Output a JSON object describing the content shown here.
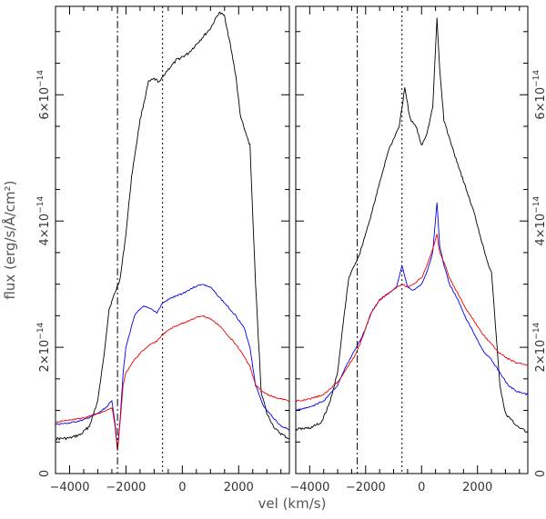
{
  "chart_data": [
    {
      "type": "line",
      "panel": "left",
      "xlabel": "vel (km/s)",
      "ylabel": "flux (erg/s/Å/cm²)",
      "xlim": [
        -4500,
        3800
      ],
      "ylim": [
        0,
        7.4e-14
      ],
      "x_ticks": [
        -4000,
        -2000,
        0,
        2000
      ],
      "x_tick_labels": [
        "−4000",
        "−2000",
        "0",
        "2000"
      ],
      "y_ticks": [
        0,
        2e-14,
        4e-14,
        6e-14
      ],
      "y_tick_labels": [
        {
          "base": "0",
          "exp": ""
        },
        {
          "base": "2×10",
          "exp": "−14"
        },
        {
          "base": "4×10",
          "exp": "−14"
        },
        {
          "base": "6×10",
          "exp": "−14"
        }
      ],
      "y_tick_side": "left",
      "vlines": [
        {
          "x": -2300,
          "style": "dashdot"
        },
        {
          "x": -700,
          "style": "dotted"
        }
      ],
      "series": [
        {
          "name": "black",
          "color": "#000000",
          "x": [
            -4500,
            -4000,
            -3600,
            -3300,
            -3000,
            -2800,
            -2600,
            -2400,
            -2200,
            -2000,
            -1800,
            -1500,
            -1200,
            -1000,
            -800,
            -600,
            -200,
            200,
            600,
            1000,
            1300,
            1500,
            1700,
            1900,
            2050,
            2200,
            2400,
            2600,
            2800,
            3000,
            3300,
            3600,
            3800
          ],
          "y": [
            5.5e-15,
            5.6e-15,
            6.2e-15,
            7.5e-15,
            1.15e-14,
            1.8e-14,
            2.6e-14,
            2.85e-14,
            3.1e-14,
            3.8e-14,
            4.7e-14,
            5.6e-14,
            6.2e-14,
            6.25e-14,
            6.2e-14,
            6.35e-14,
            6.55e-14,
            6.65e-14,
            6.85e-14,
            7.05e-14,
            7.3e-14,
            7.25e-14,
            6.8e-14,
            6.3e-14,
            5.7e-14,
            5.45e-14,
            5.2e-14,
            3e-14,
            1.3e-14,
            9.5e-15,
            7e-15,
            6e-15,
            5.5e-15
          ]
        },
        {
          "name": "blue",
          "color": "#0000ee",
          "x": [
            -4500,
            -4000,
            -3500,
            -3000,
            -2700,
            -2500,
            -2400,
            -2300,
            -2200,
            -2100,
            -2000,
            -1700,
            -1400,
            -1100,
            -900,
            -700,
            -400,
            0,
            400,
            700,
            1000,
            1300,
            1600,
            1900,
            2200,
            2400,
            2600,
            2900,
            3200,
            3500,
            3800
          ],
          "y": [
            7.8e-15,
            8e-15,
            8.5e-15,
            9.5e-15,
            1.05e-14,
            1.15e-14,
            8.5e-15,
            4e-15,
            9e-15,
            1.6e-14,
            2e-14,
            2.5e-14,
            2.65e-14,
            2.6e-14,
            2.55e-14,
            2.7e-14,
            2.78e-14,
            2.85e-14,
            2.95e-14,
            3e-14,
            2.95e-14,
            2.8e-14,
            2.65e-14,
            2.5e-14,
            2.3e-14,
            2e-14,
            1.4e-14,
            1.05e-14,
            9e-15,
            7.5e-15,
            7e-15
          ]
        },
        {
          "name": "red",
          "color": "#ee0000",
          "x": [
            -4500,
            -4000,
            -3500,
            -3000,
            -2700,
            -2500,
            -2400,
            -2300,
            -2200,
            -2100,
            -2000,
            -1700,
            -1400,
            -1100,
            -900,
            -700,
            -400,
            0,
            400,
            700,
            1000,
            1300,
            1600,
            1900,
            2200,
            2400,
            2600,
            2900,
            3200,
            3500,
            3800
          ],
          "y": [
            8.2e-15,
            8.4e-15,
            8.8e-15,
            9.5e-15,
            1e-14,
            1.05e-14,
            8e-15,
            3.5e-15,
            8.5e-15,
            1.4e-14,
            1.6e-14,
            1.8e-14,
            1.95e-14,
            2.05e-14,
            2.1e-14,
            2.2e-14,
            2.3e-14,
            2.38e-14,
            2.45e-14,
            2.5e-14,
            2.45e-14,
            2.35e-14,
            2.2e-14,
            2.05e-14,
            1.85e-14,
            1.7e-14,
            1.4e-14,
            1.28e-14,
            1.22e-14,
            1.18e-14,
            1.15e-14
          ]
        }
      ]
    },
    {
      "type": "line",
      "panel": "right",
      "xlabel": "vel (km/s)",
      "ylabel": "",
      "xlim": [
        -4500,
        3800
      ],
      "ylim": [
        0,
        7.4e-14
      ],
      "x_ticks": [
        -4000,
        -2000,
        0,
        2000
      ],
      "x_tick_labels": [
        "−4000",
        "−2000",
        "0",
        "2000"
      ],
      "y_ticks": [
        0,
        2e-14,
        4e-14,
        6e-14
      ],
      "y_tick_labels": [
        {
          "base": "0",
          "exp": ""
        },
        {
          "base": "2×10",
          "exp": "−14"
        },
        {
          "base": "4×10",
          "exp": "−14"
        },
        {
          "base": "6×10",
          "exp": "−14"
        }
      ],
      "y_tick_side": "right",
      "vlines": [
        {
          "x": -2300,
          "style": "dashdot"
        },
        {
          "x": -700,
          "style": "dotted"
        }
      ],
      "series": [
        {
          "name": "black",
          "color": "#000000",
          "x": [
            -4500,
            -4000,
            -3600,
            -3300,
            -3000,
            -2800,
            -2600,
            -2400,
            -2200,
            -2000,
            -1800,
            -1500,
            -1200,
            -1000,
            -800,
            -600,
            -400,
            -200,
            0,
            200,
            400,
            550,
            650,
            800,
            1000,
            1300,
            1600,
            1900,
            2200,
            2400,
            2500,
            2600,
            2800,
            3000,
            3300,
            3600,
            3800
          ],
          "y": [
            7e-15,
            7.2e-15,
            8e-15,
            1.1e-14,
            1.6e-14,
            2.4e-14,
            3.1e-14,
            3.3e-14,
            3.5e-14,
            3.8e-14,
            4.1e-14,
            4.6e-14,
            5.1e-14,
            5.3e-14,
            5.5e-14,
            6.1e-14,
            5.6e-14,
            5.5e-14,
            5.2e-14,
            5.4e-14,
            5.8e-14,
            7.2e-14,
            6.4e-14,
            5.6e-14,
            5.3e-14,
            4.9e-14,
            4.5e-14,
            4.1e-14,
            3.6e-14,
            3.3e-14,
            3.2e-14,
            2.6e-14,
            1.4e-14,
            9.5e-15,
            8e-15,
            7e-15,
            6.5e-15
          ]
        },
        {
          "name": "blue",
          "color": "#0000ee",
          "x": [
            -4500,
            -4000,
            -3500,
            -3000,
            -2700,
            -2400,
            -2200,
            -2000,
            -1800,
            -1500,
            -1200,
            -900,
            -700,
            -500,
            -300,
            0,
            200,
            400,
            550,
            650,
            800,
            1000,
            1300,
            1600,
            1900,
            2200,
            2500,
            2800,
            3100,
            3400,
            3800
          ],
          "y": [
            1e-14,
            1.05e-14,
            1.15e-14,
            1.4e-14,
            1.7e-14,
            1.95e-14,
            2.1e-14,
            2.3e-14,
            2.55e-14,
            2.75e-14,
            2.85e-14,
            2.95e-14,
            3.3e-14,
            2.95e-14,
            2.9e-14,
            3e-14,
            3.2e-14,
            3.5e-14,
            4.3e-14,
            3.6e-14,
            3.3e-14,
            3e-14,
            2.75e-14,
            2.45e-14,
            2.2e-14,
            1.95e-14,
            1.8e-14,
            1.6e-14,
            1.4e-14,
            1.3e-14,
            1.25e-14
          ]
        },
        {
          "name": "red",
          "color": "#ee0000",
          "x": [
            -4500,
            -4000,
            -3500,
            -3000,
            -2700,
            -2400,
            -2200,
            -2000,
            -1800,
            -1500,
            -1200,
            -900,
            -700,
            -500,
            -300,
            0,
            200,
            400,
            550,
            650,
            800,
            1000,
            1300,
            1600,
            1900,
            2200,
            2500,
            2800,
            3100,
            3400,
            3800
          ],
          "y": [
            1.15e-14,
            1.18e-14,
            1.25e-14,
            1.45e-14,
            1.65e-14,
            1.85e-14,
            2.05e-14,
            2.3e-14,
            2.55e-14,
            2.75e-14,
            2.85e-14,
            2.95e-14,
            3e-14,
            2.95e-14,
            3e-14,
            3.1e-14,
            3.3e-14,
            3.55e-14,
            3.8e-14,
            3.5e-14,
            3.35e-14,
            3.1e-14,
            2.85e-14,
            2.6e-14,
            2.4e-14,
            2.2e-14,
            2.05e-14,
            1.9e-14,
            1.82e-14,
            1.75e-14,
            1.72e-14
          ]
        }
      ]
    }
  ]
}
